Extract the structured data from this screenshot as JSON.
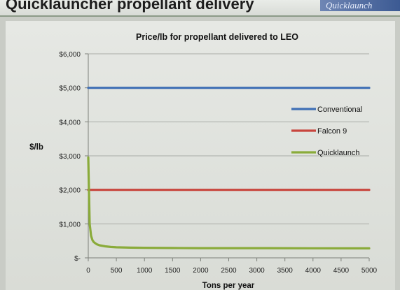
{
  "slide": {
    "title": "Quicklauncher propellant delivery",
    "brand": "Quicklaunch"
  },
  "chart_data": {
    "type": "line",
    "title": "Price/lb for propellant delivered to LEO",
    "xlabel": "Tons per year",
    "ylabel": "$/lb",
    "xlim": [
      0,
      5000
    ],
    "ylim": [
      0,
      6000
    ],
    "x_ticks": [
      0,
      500,
      1000,
      1500,
      2000,
      2500,
      3000,
      3500,
      4000,
      4500,
      5000
    ],
    "y_ticks": [
      0,
      1000,
      2000,
      3000,
      4000,
      5000,
      6000
    ],
    "y_tick_labels": [
      "$-",
      "$1,000",
      "$2,000",
      "$3,000",
      "$4,000",
      "$5,000",
      "$6,000"
    ],
    "grid": "horizontal",
    "legend_position": "right",
    "series": [
      {
        "name": "Conventional",
        "color": "#3f6fb5",
        "x": [
          0,
          5000
        ],
        "y": [
          5000,
          5000
        ]
      },
      {
        "name": "Falcon 9",
        "color": "#c8453d",
        "x": [
          0,
          5000
        ],
        "y": [
          2000,
          2000
        ]
      },
      {
        "name": "Quicklaunch",
        "color": "#8aab3a",
        "x": [
          0,
          25,
          50,
          75,
          100,
          150,
          200,
          300,
          400,
          500,
          750,
          1000,
          1500,
          2000,
          3000,
          4000,
          5000
        ],
        "y": [
          2950,
          1000,
          650,
          520,
          460,
          400,
          370,
          340,
          320,
          310,
          300,
          295,
          290,
          285,
          285,
          282,
          280
        ]
      }
    ]
  }
}
